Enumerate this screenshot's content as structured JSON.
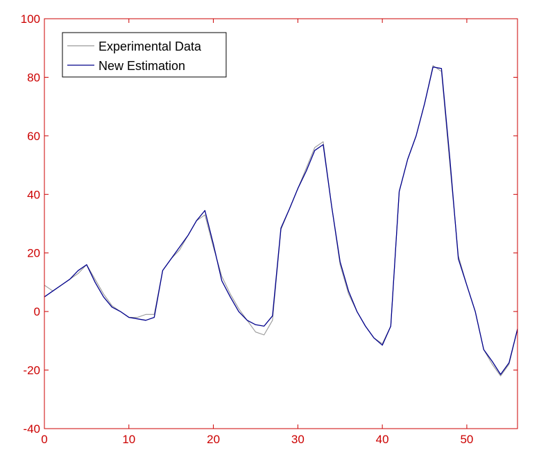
{
  "chart_data": {
    "type": "line",
    "title": "",
    "xlabel": "",
    "ylabel": "",
    "xlim": [
      0,
      56
    ],
    "ylim": [
      -40,
      100
    ],
    "x_ticks": [
      0,
      10,
      20,
      30,
      40,
      50
    ],
    "y_ticks": [
      -40,
      -20,
      0,
      20,
      40,
      60,
      80,
      100
    ],
    "grid": false,
    "legend_position": "top-left",
    "axis_color": "#cc0000",
    "series": [
      {
        "name": "Experimental Data",
        "color": "#999999",
        "x": [
          0,
          1,
          2,
          3,
          4,
          5,
          6,
          7,
          8,
          9,
          10,
          11,
          12,
          13,
          14,
          15,
          16,
          17,
          18,
          19,
          20,
          21,
          22,
          23,
          24,
          25,
          26,
          27,
          28,
          29,
          30,
          31,
          32,
          33,
          34,
          35,
          36,
          37,
          38,
          39,
          40,
          41,
          42,
          43,
          44,
          45,
          46,
          47,
          48,
          49,
          50,
          51,
          52,
          53,
          54,
          55,
          56
        ],
        "y": [
          9,
          7,
          9,
          11,
          13,
          16,
          11,
          6,
          2,
          0,
          -2,
          -2,
          -1,
          -1,
          14,
          18,
          21,
          26,
          31,
          33,
          22,
          12,
          6,
          1,
          -3,
          -7,
          -8,
          -3,
          28,
          35,
          42,
          49,
          56,
          58,
          36,
          16,
          6,
          0,
          -5,
          -9,
          -11,
          -5,
          41,
          52,
          60,
          71,
          84,
          82,
          50,
          19,
          9,
          0,
          -13,
          -18,
          -22,
          -18,
          -6
        ]
      },
      {
        "name": "New Estimation",
        "color": "#00008b",
        "x": [
          0,
          1,
          2,
          3,
          4,
          5,
          6,
          7,
          8,
          9,
          10,
          11,
          12,
          13,
          14,
          15,
          16,
          17,
          18,
          19,
          20,
          21,
          22,
          23,
          24,
          25,
          26,
          27,
          28,
          29,
          30,
          31,
          32,
          33,
          34,
          35,
          36,
          37,
          38,
          39,
          40,
          41,
          42,
          43,
          44,
          45,
          46,
          47,
          48,
          49,
          50,
          51,
          52,
          53,
          54,
          55,
          56
        ],
        "y": [
          5,
          7,
          9,
          11,
          14,
          16,
          10,
          5,
          1.5,
          0,
          -2,
          -2.5,
          -3,
          -2,
          14,
          18,
          22,
          26,
          31,
          34.5,
          23,
          10.5,
          5,
          0,
          -3,
          -4.5,
          -5,
          -1.5,
          28.5,
          35,
          42,
          48,
          55,
          57,
          36,
          17,
          7,
          0,
          -5,
          -9,
          -11.5,
          -5,
          41,
          52,
          60,
          71,
          83.5,
          83,
          52,
          18,
          9,
          0,
          -13,
          -17,
          -21.5,
          -17.5,
          -6
        ]
      }
    ]
  }
}
